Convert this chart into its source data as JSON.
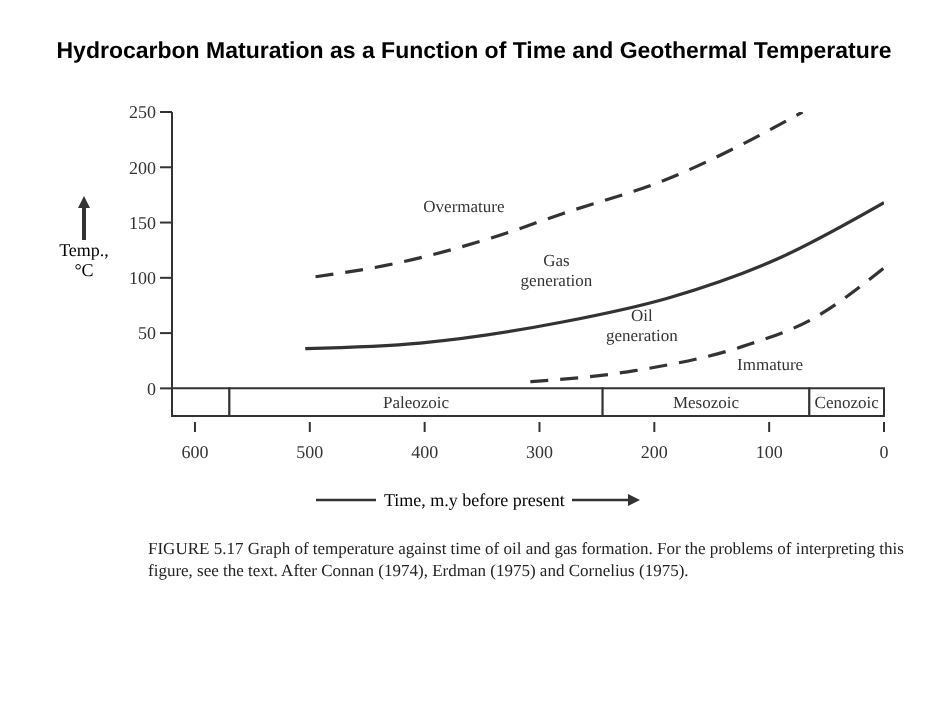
{
  "chart_data": {
    "type": "line",
    "title": "Hydrocarbon Maturation as a Function of Time and Geothermal Temperature",
    "xlabel": "Time, m.y before present",
    "ylabel": "Temp., °C",
    "xlim": [
      620,
      0
    ],
    "xticks": [
      600,
      500,
      400,
      300,
      200,
      100,
      0
    ],
    "ylim": [
      -25,
      250
    ],
    "yticks": [
      0,
      50,
      100,
      150,
      200,
      250
    ],
    "grid": false,
    "legend": false,
    "marker": "none",
    "series": [
      {
        "color": "#333333",
        "line_style": "dashed",
        "x": [
          495,
          435,
          342,
          280,
          187,
          123,
          71
        ],
        "values": [
          101,
          111,
          136,
          158,
          190,
          221,
          250
        ]
      },
      {
        "color": "#333333",
        "line_style": "solid",
        "x": [
          504,
          404,
          280,
          187,
          93,
          0
        ],
        "values": [
          36,
          41,
          60,
          82,
          117,
          168
        ]
      },
      {
        "color": "#333333",
        "line_style": "dashed",
        "x": [
          308,
          217,
          123,
          62,
          0
        ],
        "values": [
          6,
          16,
          38,
          63,
          109
        ]
      }
    ],
    "bands": [
      {
        "axis": "x",
        "from": 620,
        "to": 570,
        "label": null
      },
      {
        "axis": "x",
        "from": 570,
        "to": 245,
        "label": "Paleozoic"
      },
      {
        "axis": "x",
        "from": 245,
        "to": 65,
        "label": "Mesozoic"
      },
      {
        "axis": "x",
        "from": 65,
        "to": 0,
        "label": "Cenozoic"
      }
    ],
    "annotations": [
      "Overmature",
      "Gas generation",
      "Oil generation",
      "Immature",
      "FIGURE 5.17 Graph of temperature against time of oil and gas formation. For the problems of interpreting this figure, see the text. After Connan (1974), Erdman (1975) and Cornelius (1975)."
    ]
  }
}
